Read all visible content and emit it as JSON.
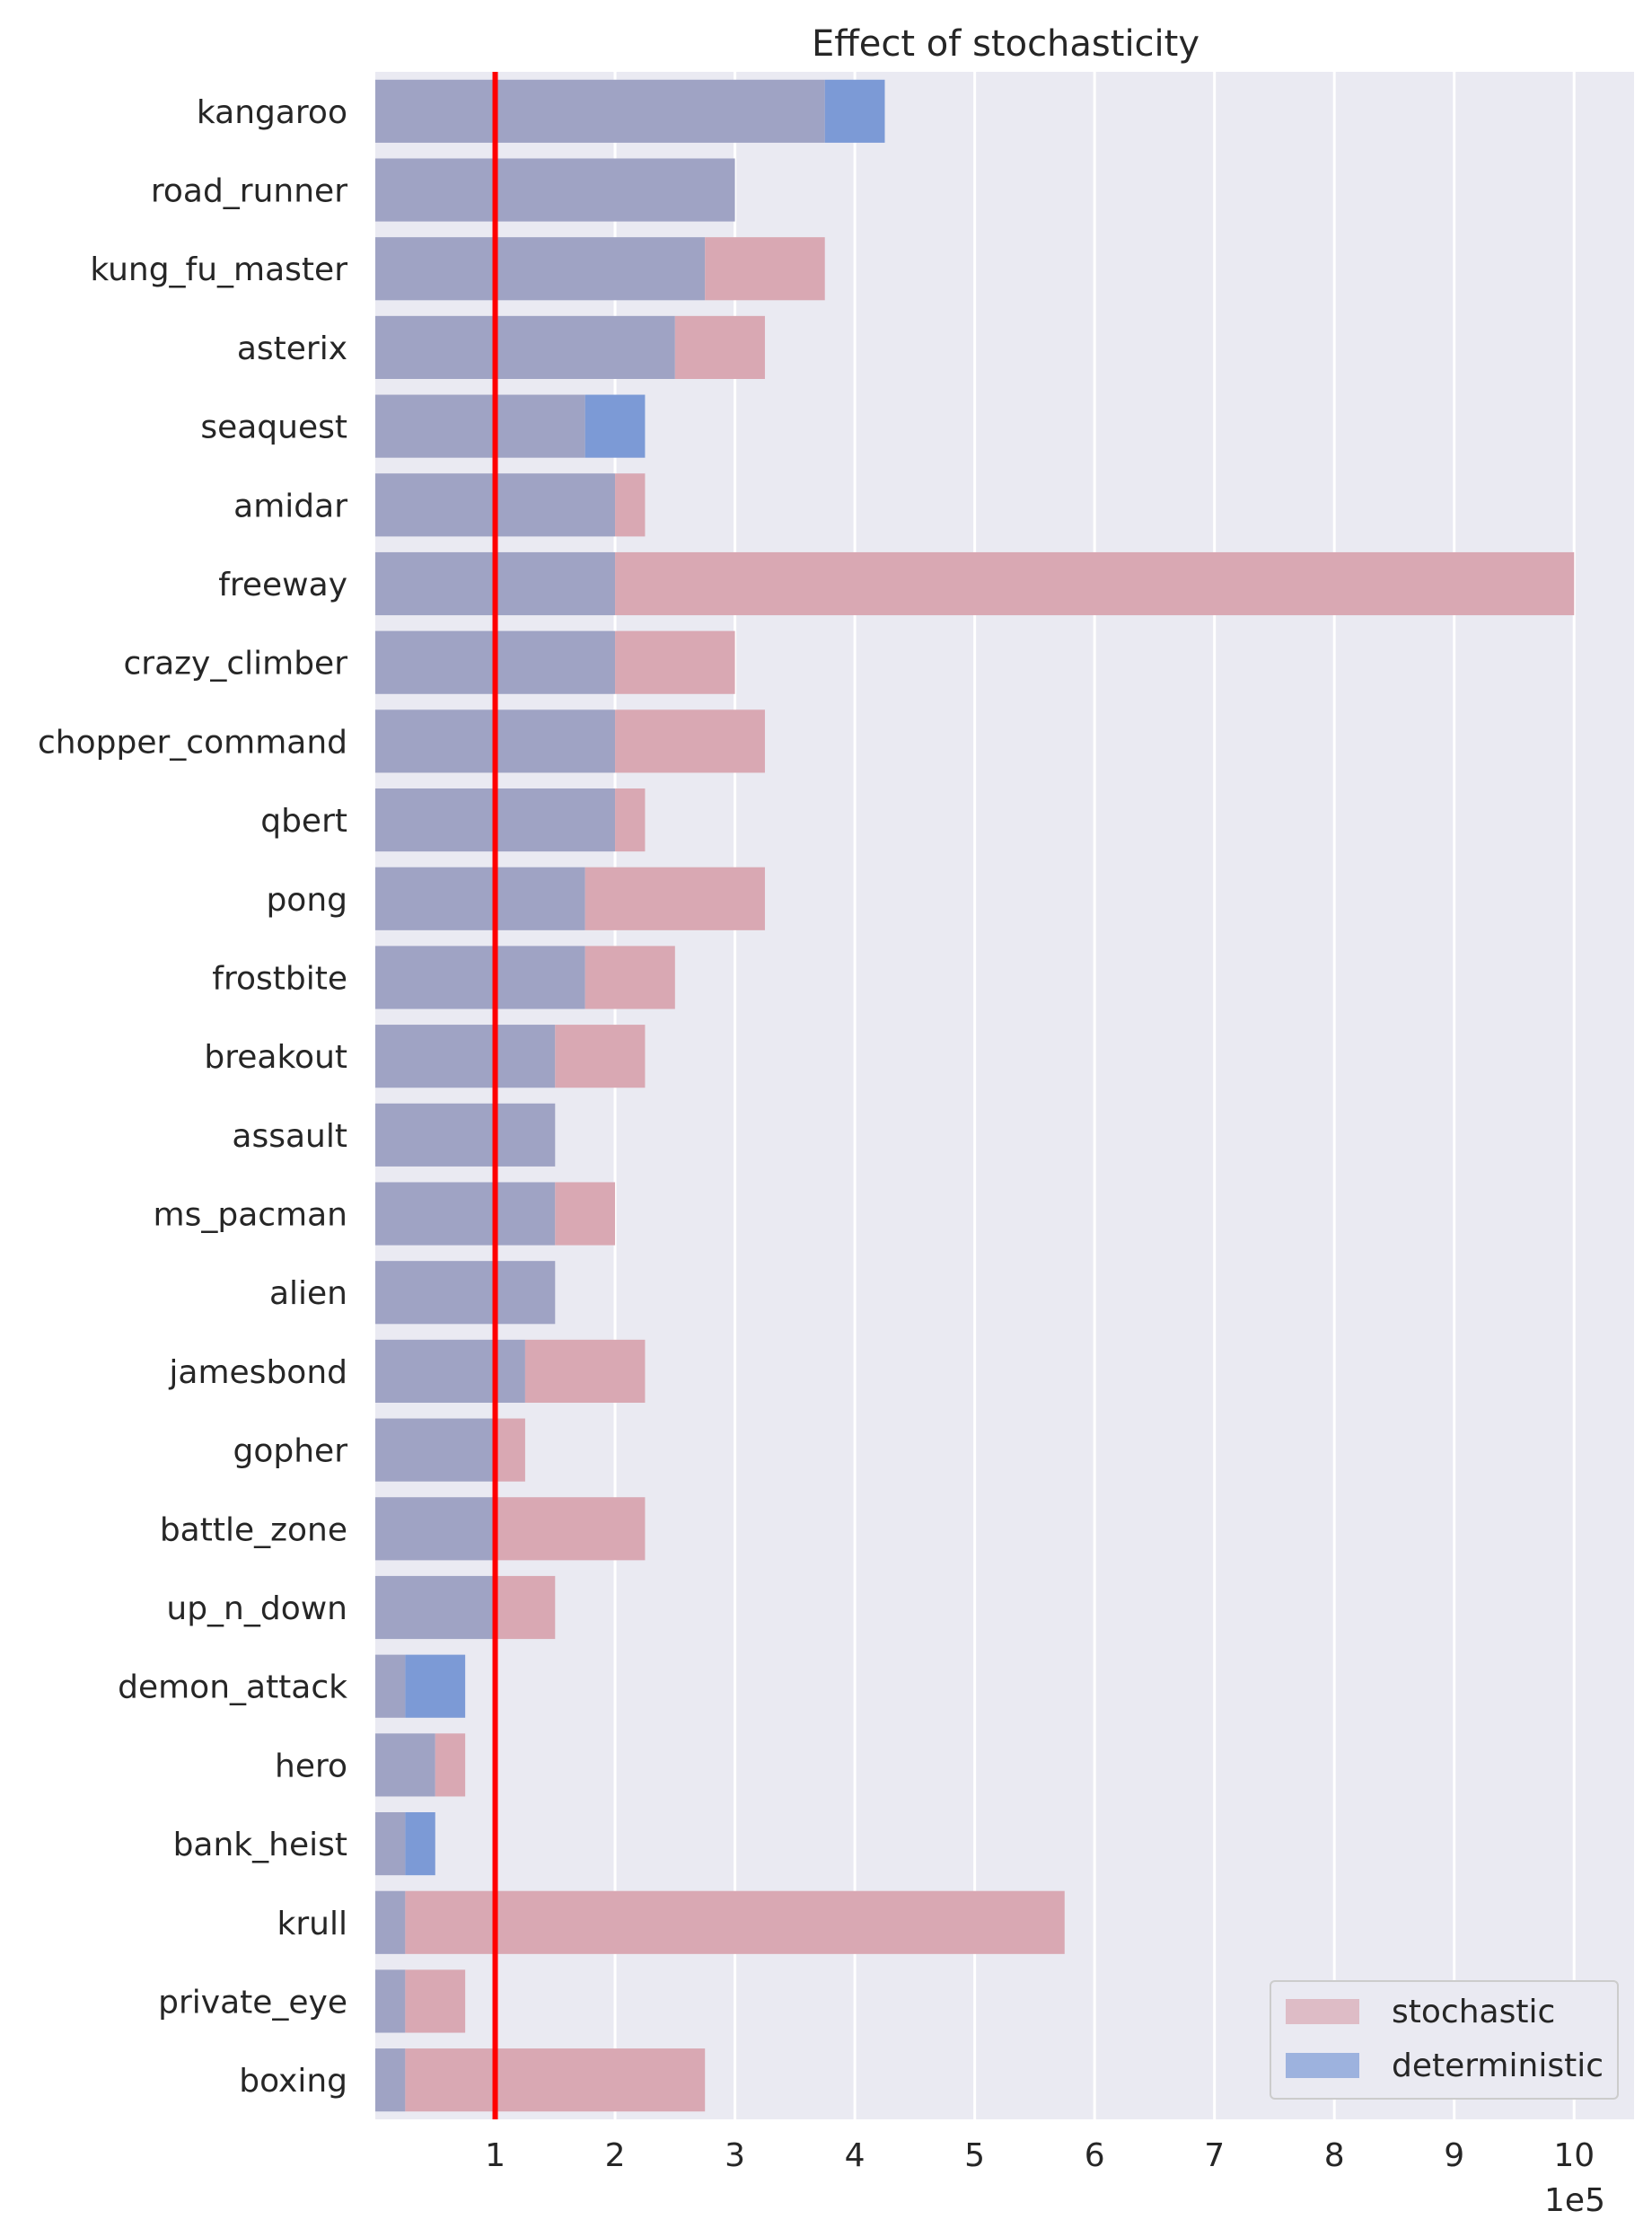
{
  "chart_data": {
    "type": "bar",
    "orientation": "horizontal",
    "title": "Effect of stochasticity",
    "xlabel": "",
    "ylabel": "",
    "x_offset_label": "1e5",
    "xlim": [
      0,
      10.5
    ],
    "x_ticks": [
      1,
      2,
      3,
      4,
      5,
      6,
      7,
      8,
      9,
      10
    ],
    "grid": true,
    "reference_line": {
      "x": 1,
      "color": "#ff0000"
    },
    "legend_position": "bottom-right",
    "categories": [
      "kangaroo",
      "road_runner",
      "kung_fu_master",
      "asterix",
      "seaquest",
      "amidar",
      "freeway",
      "crazy_climber",
      "chopper_command",
      "qbert",
      "pong",
      "frostbite",
      "breakout",
      "assault",
      "ms_pacman",
      "alien",
      "jamesbond",
      "gopher",
      "battle_zone",
      "up_n_down",
      "demon_attack",
      "hero",
      "bank_heist",
      "krull",
      "private_eye",
      "boxing"
    ],
    "series": [
      {
        "name": "stochastic",
        "color": "#d9a8b3",
        "values": [
          3.75,
          3.0,
          3.75,
          3.25,
          1.75,
          2.25,
          10.0,
          3.0,
          3.25,
          2.25,
          3.25,
          2.5,
          2.25,
          1.5,
          2.0,
          1.5,
          2.25,
          1.25,
          2.25,
          1.5,
          0.25,
          0.75,
          0.25,
          5.75,
          0.75,
          2.75
        ]
      },
      {
        "name": "deterministic",
        "color": "#7c9ad6",
        "values": [
          4.25,
          3.0,
          2.75,
          2.5,
          2.25,
          2.0,
          2.0,
          2.0,
          2.0,
          2.0,
          1.75,
          1.75,
          1.5,
          1.5,
          1.5,
          1.5,
          1.25,
          1.0,
          1.0,
          1.0,
          0.75,
          0.5,
          0.5,
          0.25,
          0.25,
          0.25
        ]
      }
    ],
    "overlap_color": "#9fa3c4"
  }
}
